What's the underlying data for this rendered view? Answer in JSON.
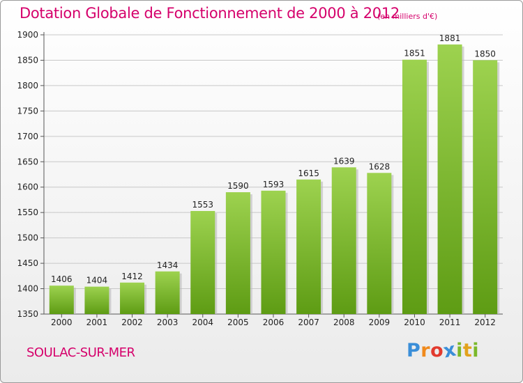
{
  "chart_data": {
    "type": "bar",
    "title": "Dotation Globale de Fonctionnement de 2000 à 2012",
    "subtitle": "(en milliers d'€)",
    "xlabel": "",
    "ylabel": "",
    "categories": [
      "2000",
      "2001",
      "2002",
      "2003",
      "2004",
      "2005",
      "2006",
      "2007",
      "2008",
      "2009",
      "2010",
      "2011",
      "2012"
    ],
    "values": [
      1406,
      1404,
      1412,
      1434,
      1553,
      1590,
      1593,
      1615,
      1639,
      1628,
      1851,
      1881,
      1850
    ],
    "ylim": [
      1350,
      1900
    ],
    "yticks": [
      1350,
      1400,
      1450,
      1500,
      1550,
      1600,
      1650,
      1700,
      1750,
      1800,
      1850,
      1900
    ],
    "grid": true,
    "bar_color_top": "#9dd24f",
    "bar_color_bottom": "#5e9c14"
  },
  "footer": {
    "city": "SOULAC-SUR-MER",
    "logo_letters": [
      "P",
      "r",
      "o",
      "x",
      "i",
      "t",
      "i"
    ],
    "logo_colors": [
      "#3a8ed8",
      "#f08a1c",
      "#e23a2e",
      "#3a8ed8",
      "#7ab82a",
      "#e2a21c",
      "#7ab82a"
    ]
  }
}
